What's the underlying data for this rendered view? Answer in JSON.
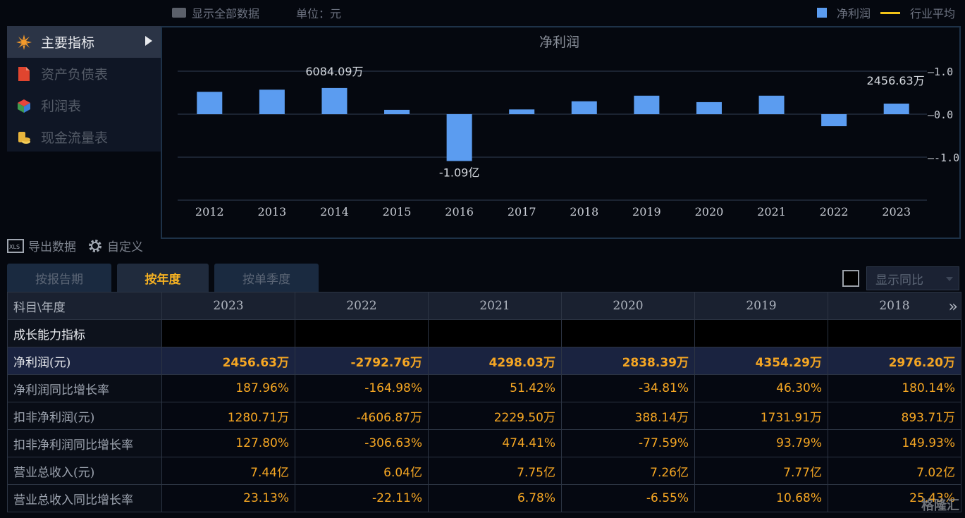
{
  "topbar": {
    "show_all_label": "显示全部数据",
    "unit_label": "单位：元",
    "legend_net_profit": "净利润",
    "legend_industry_avg": "行业平均"
  },
  "menu": {
    "items": [
      {
        "label": "主要指标",
        "icon": "star-icon",
        "active": true
      },
      {
        "label": "资产负债表",
        "icon": "document-icon",
        "active": false
      },
      {
        "label": "利润表",
        "icon": "cube-icon",
        "active": false
      },
      {
        "label": "现金流量表",
        "icon": "coins-icon",
        "active": false
      }
    ]
  },
  "chart_data": {
    "type": "bar",
    "title": "净利润",
    "categories": [
      "2012",
      "2013",
      "2014",
      "2015",
      "2016",
      "2017",
      "2018",
      "2019",
      "2020",
      "2021",
      "2022",
      "2023"
    ],
    "values": [
      0.52,
      0.57,
      0.6084,
      0.1,
      -1.09,
      0.11,
      0.3,
      0.43,
      0.28,
      0.43,
      -0.28,
      0.2457
    ],
    "y_ticks": [
      "1.0",
      "0.0",
      "-1.0"
    ],
    "ylim": [
      -2.0,
      1.0
    ],
    "annotations": [
      {
        "category": "2014",
        "text": "6084.09万"
      },
      {
        "category": "2016",
        "text": "-1.09亿"
      },
      {
        "category": "2023",
        "text": "2456.63万"
      }
    ],
    "bar_color": "#5b9cf0",
    "grid": true
  },
  "actions": {
    "export_label": "导出数据",
    "customize_label": "自定义"
  },
  "tabs": [
    {
      "label": "按报告期",
      "active": false
    },
    {
      "label": "按年度",
      "active": true
    },
    {
      "label": "按单季度",
      "active": false
    }
  ],
  "yoy": {
    "select_value": "显示同比"
  },
  "table": {
    "header_label": "科目\\年度",
    "years": [
      "2023",
      "2022",
      "2021",
      "2020",
      "2019",
      "2018"
    ],
    "rows": [
      {
        "label": "成长能力指标",
        "values": [
          "",
          "",
          "",
          "",
          "",
          ""
        ],
        "type": "section"
      },
      {
        "label": "净利润(元)",
        "values": [
          "2456.63万",
          "-2792.76万",
          "4298.03万",
          "2838.39万",
          "4354.29万",
          "2976.20万"
        ],
        "type": "hl"
      },
      {
        "label": "净利润同比增长率",
        "values": [
          "187.96%",
          "-164.98%",
          "51.42%",
          "-34.81%",
          "46.30%",
          "180.14%"
        ],
        "type": ""
      },
      {
        "label": "扣非净利润(元)",
        "values": [
          "1280.71万",
          "-4606.87万",
          "2229.50万",
          "388.14万",
          "1731.91万",
          "893.71万"
        ],
        "type": ""
      },
      {
        "label": "扣非净利润同比增长率",
        "values": [
          "127.80%",
          "-306.63%",
          "474.41%",
          "-77.59%",
          "93.79%",
          "149.93%"
        ],
        "type": ""
      },
      {
        "label": "营业总收入(元)",
        "values": [
          "7.44亿",
          "6.04亿",
          "7.75亿",
          "7.26亿",
          "7.77亿",
          "7.02亿"
        ],
        "type": ""
      },
      {
        "label": "营业总收入同比增长率",
        "values": [
          "23.13%",
          "-22.11%",
          "6.78%",
          "-6.55%",
          "10.68%",
          "25.43%"
        ],
        "type": ""
      }
    ]
  },
  "watermark": "格隆汇"
}
